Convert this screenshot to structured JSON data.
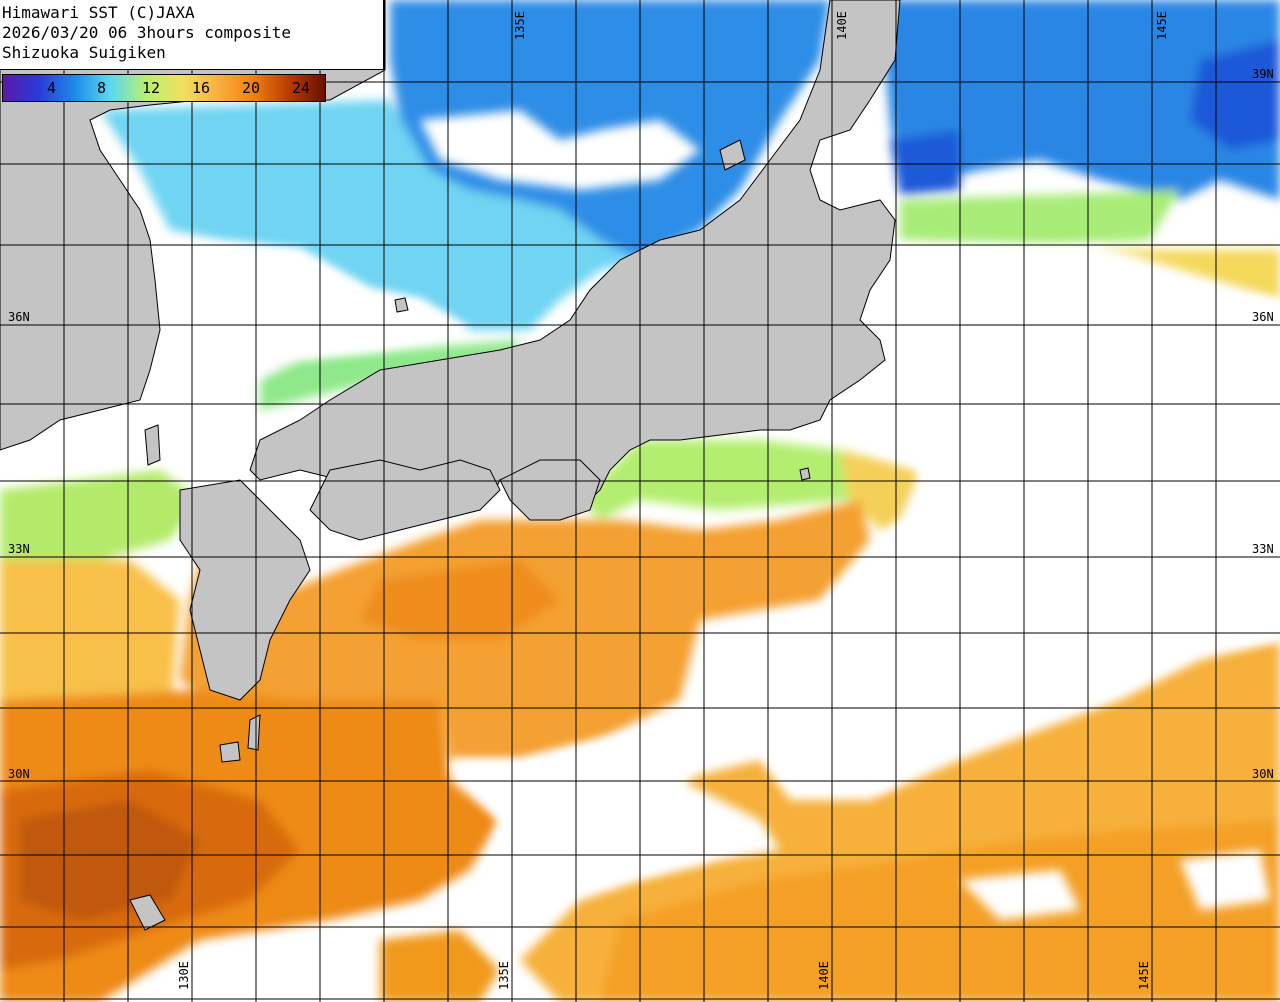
{
  "title": {
    "line1": "Himawari SST (C)JAXA",
    "line2": "2026/03/20 06 3hours composite",
    "line3": "Shizuoka Suigiken"
  },
  "legend": {
    "ticks": [
      "4",
      "8",
      "12",
      "16",
      "20",
      "24"
    ],
    "colors": [
      "#5a1aa8",
      "#2a3ad8",
      "#1e8ae8",
      "#5ad8f0",
      "#b8f070",
      "#f0e060",
      "#f8b040",
      "#f08010",
      "#b83a00",
      "#6a1000"
    ]
  },
  "graticule": {
    "lat_labels": [
      "39N",
      "36N",
      "33N",
      "30N"
    ],
    "lon_labels": [
      "130E",
      "135E",
      "140E",
      "145E"
    ]
  },
  "colors": {
    "land": "#c4c4c4",
    "no_data": "#ffffff",
    "grid": "#000000"
  }
}
